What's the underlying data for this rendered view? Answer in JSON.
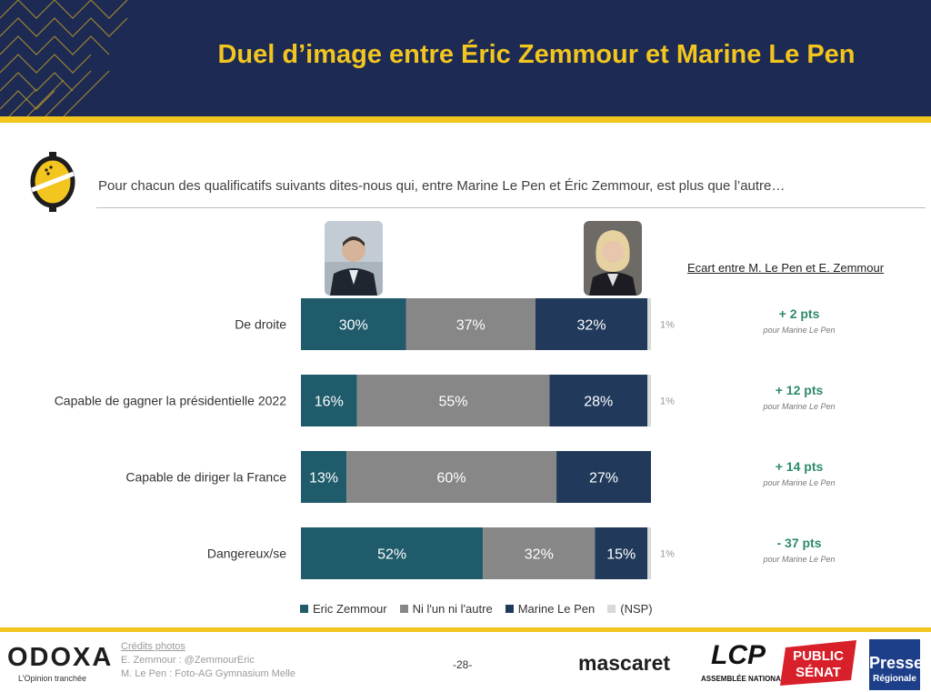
{
  "title": "Duel d’image entre Éric Zemmour et Marine Le Pen",
  "question": "Pour chacun des qualificatifs suivants dites-nous qui, entre Marine Le Pen et Éric Zemmour, est plus que l’autre…",
  "gap_column_header": "Ecart entre M. Le Pen et E. Zemmour",
  "chart_data": {
    "type": "bar",
    "orientation": "horizontal",
    "stacked": true,
    "unit": "%",
    "categories": [
      "De droite",
      "Capable de gagner la présidentielle 2022",
      "Capable de diriger la France",
      "Dangereux/se"
    ],
    "series": [
      {
        "name": "Eric Zemmour",
        "values": [
          30,
          16,
          13,
          52
        ],
        "color": "#1f5b6b"
      },
      {
        "name": "Ni l'un ni l'autre",
        "values": [
          37,
          55,
          60,
          32
        ],
        "color": "#878787"
      },
      {
        "name": "Marine Le Pen",
        "values": [
          32,
          28,
          27,
          15
        ],
        "color": "#213a5c"
      },
      {
        "name": "(NSP)",
        "values": [
          1,
          1,
          0,
          1
        ],
        "color": "#d9d9d9"
      }
    ],
    "nsp_labels": [
      "1%",
      "1%",
      "",
      "1%"
    ],
    "gaps": [
      {
        "value": "+ 2 pts",
        "note": "pour Marine Le Pen"
      },
      {
        "value": "+ 12 pts",
        "note": "pour Marine Le Pen"
      },
      {
        "value": "+ 14 pts",
        "note": "pour Marine Le Pen"
      },
      {
        "value": "- 37 pts",
        "note": "pour Marine Le Pen"
      }
    ],
    "gap_color": "#2e8b6a",
    "legend_position": "bottom"
  },
  "footer": {
    "brand": "ODOXA",
    "tagline": "L’Opinion tranchée",
    "credits_title": "Crédits photos",
    "credit_1": "E. Zemmour : @ZemmourEric",
    "credit_2": "M. Le Pen : Foto-AG Gymnasium Melle",
    "page": "-28-",
    "partner_1": "mascaret",
    "partner_2": "LCP",
    "partner_2_sub": "ASSEMBLÉE NATIONALE",
    "partner_3_line1": "PUBLIC",
    "partner_3_line2": "SÉNAT",
    "partner_4_line1": "Presse",
    "partner_4_line2": "Régionale"
  },
  "colors": {
    "header_bg": "#1c2a54",
    "accent": "#f2c51f"
  }
}
